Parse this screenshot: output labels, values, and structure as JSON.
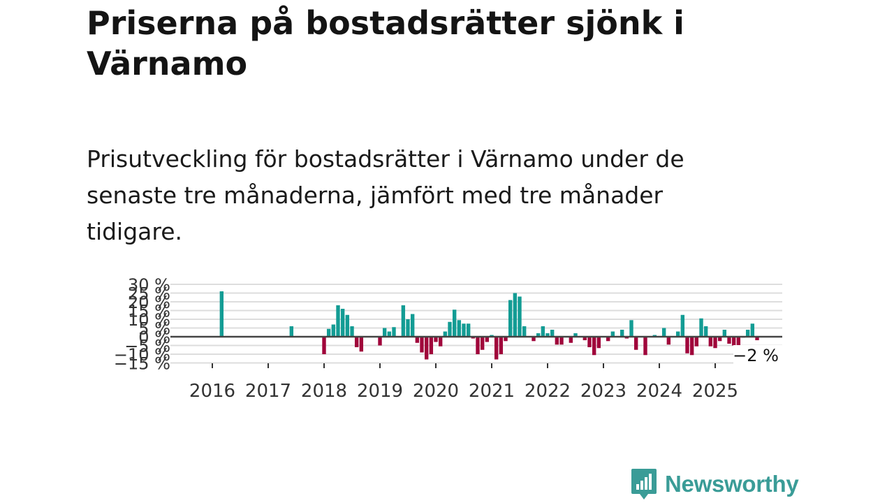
{
  "title": "Priserna på bostadsrätter sjönk i Värnamo",
  "subtitle": "Prisutveckling för bostadsrätter i Värnamo under de senaste tre månaderna, jämfört med tre månader tidigare.",
  "brand": {
    "name": "Newsworthy",
    "icon": "newsworthy-logo-icon"
  },
  "colors": {
    "positive": "#139c94",
    "negative": "#a0063b",
    "zero_line": "#444444",
    "grid": "#dddddd",
    "brand": "#3a9c97"
  },
  "chart_data": {
    "type": "bar",
    "title": "",
    "xlabel": "",
    "ylabel": "",
    "ylim": [
      -15,
      30
    ],
    "y_ticks": [
      30,
      25,
      20,
      15,
      10,
      5,
      0,
      -5,
      -10,
      -15
    ],
    "y_tick_labels": [
      "30 %",
      "25 %",
      "20 %",
      "15 %",
      "10 %",
      "5 %",
      "0 %",
      "−5 %",
      "−10 %",
      "−15 %"
    ],
    "x_ticks": [
      "2016",
      "2017",
      "2018",
      "2019",
      "2020",
      "2021",
      "2022",
      "2023",
      "2024",
      "2025"
    ],
    "grid": true,
    "start": "2016-01",
    "values": [
      0,
      0,
      0,
      0,
      0,
      0,
      0,
      0,
      0,
      0,
      0,
      0,
      0,
      0,
      0,
      0,
      0,
      0,
      0,
      0,
      0,
      0,
      0,
      0,
      0,
      0,
      0,
      0,
      0,
      0,
      0,
      0,
      0,
      0,
      0,
      0,
      0,
      0,
      0,
      0,
      0,
      0,
      0,
      0,
      0,
      0,
      0,
      0,
      0,
      0,
      0,
      0,
      0,
      0,
      0,
      0,
      0,
      0,
      0,
      0,
      0,
      0,
      0,
      0,
      0,
      0,
      0,
      0,
      0,
      0,
      0,
      0,
      0,
      0,
      0,
      0,
      0,
      0,
      0,
      0,
      0,
      0,
      0,
      0,
      0,
      0,
      0,
      0,
      0,
      0,
      0,
      0,
      0,
      0,
      0,
      0,
      0,
      0,
      0,
      0,
      0,
      0,
      0,
      0,
      0,
      0,
      0,
      0,
      0,
      0,
      0,
      0,
      0,
      0,
      0,
      0,
      0,
      0,
      0
    ],
    "bars": [
      {
        "x": "2016-03",
        "y": 26
      },
      {
        "x": "2017-06",
        "y": 6
      },
      {
        "x": "2018-01",
        "y": -10
      },
      {
        "x": "2018-02",
        "y": 4.5
      },
      {
        "x": "2018-03",
        "y": 7
      },
      {
        "x": "2018-04",
        "y": 18
      },
      {
        "x": "2018-05",
        "y": 16
      },
      {
        "x": "2018-06",
        "y": 12.5
      },
      {
        "x": "2018-07",
        "y": 6
      },
      {
        "x": "2018-08",
        "y": -6
      },
      {
        "x": "2018-09",
        "y": -8.5
      },
      {
        "x": "2019-01",
        "y": -5
      },
      {
        "x": "2019-02",
        "y": 5
      },
      {
        "x": "2019-03",
        "y": 3
      },
      {
        "x": "2019-04",
        "y": 5.5
      },
      {
        "x": "2019-06",
        "y": 18
      },
      {
        "x": "2019-07",
        "y": 10
      },
      {
        "x": "2019-08",
        "y": 13
      },
      {
        "x": "2019-09",
        "y": -3.5
      },
      {
        "x": "2019-10",
        "y": -9
      },
      {
        "x": "2019-11",
        "y": -13
      },
      {
        "x": "2019-12",
        "y": -10
      },
      {
        "x": "2020-01",
        "y": -3
      },
      {
        "x": "2020-02",
        "y": -5.5
      },
      {
        "x": "2020-03",
        "y": 3
      },
      {
        "x": "2020-04",
        "y": 8.5
      },
      {
        "x": "2020-05",
        "y": 15.5
      },
      {
        "x": "2020-06",
        "y": 9.5
      },
      {
        "x": "2020-07",
        "y": 7.5
      },
      {
        "x": "2020-08",
        "y": 7.5
      },
      {
        "x": "2020-09",
        "y": -1
      },
      {
        "x": "2020-10",
        "y": -10
      },
      {
        "x": "2020-11",
        "y": -7.5
      },
      {
        "x": "2020-12",
        "y": -3
      },
      {
        "x": "2021-01",
        "y": 1
      },
      {
        "x": "2021-02",
        "y": -13
      },
      {
        "x": "2021-03",
        "y": -10
      },
      {
        "x": "2021-04",
        "y": -2.5
      },
      {
        "x": "2021-05",
        "y": 21
      },
      {
        "x": "2021-06",
        "y": 25
      },
      {
        "x": "2021-07",
        "y": 23
      },
      {
        "x": "2021-08",
        "y": 6
      },
      {
        "x": "2021-10",
        "y": -2.5
      },
      {
        "x": "2021-11",
        "y": 2
      },
      {
        "x": "2021-12",
        "y": 6
      },
      {
        "x": "2022-01",
        "y": 2
      },
      {
        "x": "2022-02",
        "y": 4
      },
      {
        "x": "2022-03",
        "y": -4.5
      },
      {
        "x": "2022-04",
        "y": -4.5
      },
      {
        "x": "2022-06",
        "y": -3.5
      },
      {
        "x": "2022-07",
        "y": 2
      },
      {
        "x": "2022-09",
        "y": -2
      },
      {
        "x": "2022-10",
        "y": -6
      },
      {
        "x": "2022-11",
        "y": -10.5
      },
      {
        "x": "2022-12",
        "y": -6.5
      },
      {
        "x": "2023-02",
        "y": -2.5
      },
      {
        "x": "2023-03",
        "y": 3
      },
      {
        "x": "2023-05",
        "y": 4
      },
      {
        "x": "2023-06",
        "y": -1
      },
      {
        "x": "2023-07",
        "y": 9.5
      },
      {
        "x": "2023-08",
        "y": -7.5
      },
      {
        "x": "2023-10",
        "y": -10.5
      },
      {
        "x": "2023-12",
        "y": 1
      },
      {
        "x": "2024-02",
        "y": 5
      },
      {
        "x": "2024-03",
        "y": -4.5
      },
      {
        "x": "2024-05",
        "y": 3
      },
      {
        "x": "2024-06",
        "y": 12.5
      },
      {
        "x": "2024-07",
        "y": -9.5
      },
      {
        "x": "2024-08",
        "y": -10.5
      },
      {
        "x": "2024-09",
        "y": -5.5
      },
      {
        "x": "2024-10",
        "y": 10.5
      },
      {
        "x": "2024-11",
        "y": 6
      },
      {
        "x": "2024-12",
        "y": -5.5
      },
      {
        "x": "2025-01",
        "y": -6.5
      },
      {
        "x": "2025-02",
        "y": -2.5
      },
      {
        "x": "2025-03",
        "y": 4
      },
      {
        "x": "2025-04",
        "y": -4
      },
      {
        "x": "2025-05",
        "y": -5
      },
      {
        "x": "2025-06",
        "y": -7.5
      },
      {
        "x": "2025-07",
        "y": -0.5
      },
      {
        "x": "2025-08",
        "y": 4
      },
      {
        "x": "2025-09",
        "y": 7.5
      },
      {
        "x": "2025-10",
        "y": -2
      }
    ],
    "annotation": {
      "text": "−2 %",
      "x": "2025-10",
      "y": -2
    }
  }
}
